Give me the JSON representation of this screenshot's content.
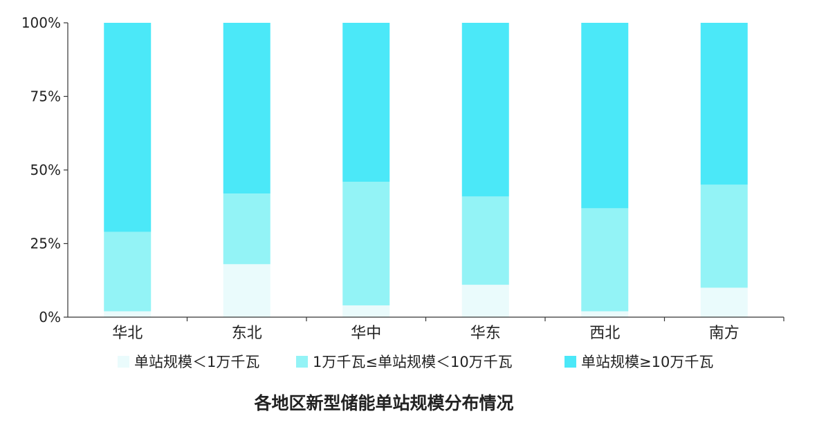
{
  "chart_data": {
    "type": "bar",
    "stacked": true,
    "title": "各地区新型储能单站规模分布情况",
    "xlabel": "",
    "ylabel": "",
    "ylim": [
      0,
      100
    ],
    "y_ticks": [
      "0%",
      "25%",
      "50%",
      "75%",
      "100%"
    ],
    "y_tick_values": [
      0,
      25,
      50,
      75,
      100
    ],
    "categories": [
      "华北",
      "东北",
      "华中",
      "华东",
      "西北",
      "南方"
    ],
    "legend_position": "bottom",
    "grid": false,
    "series": [
      {
        "name": "单站规模＜1万千瓦",
        "color": "#eafbfc",
        "values": [
          2,
          18,
          4,
          11,
          2,
          10
        ]
      },
      {
        "name": "1万千瓦≤单站规模＜10万千瓦",
        "color": "#93f3f6",
        "values": [
          27,
          24,
          42,
          30,
          35,
          35
        ]
      },
      {
        "name": "单站规模≥10万千瓦",
        "color": "#4be8f8",
        "values": [
          71,
          58,
          54,
          59,
          63,
          55
        ]
      }
    ]
  }
}
